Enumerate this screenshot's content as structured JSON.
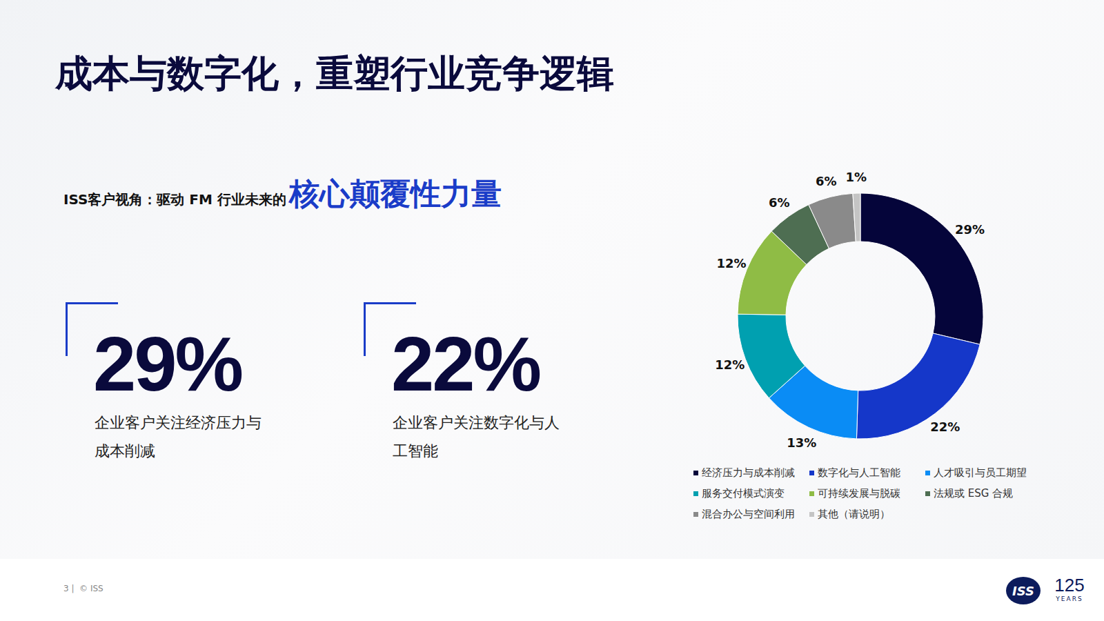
{
  "title": "成本与数字化，重塑行业竞争逻辑",
  "subtitle": {
    "text": "ISS客户视角：驱动 FM 行业未来的",
    "highlight": "核心颠覆性力量"
  },
  "stats": [
    {
      "value_text": "29%",
      "caption": "企业客户关注经济压力与成本削减"
    },
    {
      "value_text": "22%",
      "caption": "企业客户关注数字化与人工智能"
    }
  ],
  "footer": "3 |  © ISS",
  "logo": {
    "mark": "ISS",
    "number": "125",
    "text": "YEARS"
  },
  "chart_data": {
    "type": "donut",
    "categories": [
      "经济压力与成本削减",
      "数字化与人工智能",
      "人才吸引与员工期望",
      "服务交付模式演变",
      "可持续发展与脱碳",
      "法规或 ESG 合规",
      "混合办公与空间利用",
      "其他（请说明）"
    ],
    "values": [
      29,
      22,
      13,
      12,
      12,
      6,
      6,
      1
    ],
    "value_labels": [
      "29%",
      "22%",
      "13%",
      "12%",
      "12%",
      "6%",
      "6%",
      "1%"
    ],
    "colors": [
      "#05053a",
      "#1537c9",
      "#0a8cf5",
      "#00a0b0",
      "#8fbc45",
      "#4e6e52",
      "#8a8a8a",
      "#c4c4c4"
    ],
    "data_labels": true,
    "legend": "bottom"
  }
}
